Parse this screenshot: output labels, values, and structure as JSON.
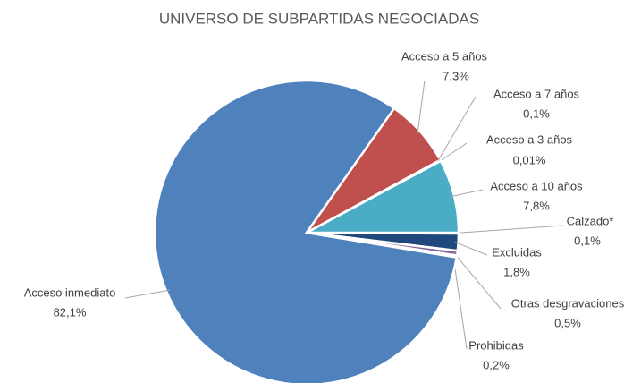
{
  "chart_data": {
    "type": "pie",
    "title": "UNIVERSO DE SUBPARTIDAS NEGOCIADAS",
    "categories": [
      "Calzado*",
      "Excluidas",
      "Otras desgravaciones",
      "Prohibidas",
      "Acceso inmediato",
      "Acceso a 5 años",
      "Acceso a 7 años",
      "Acceso a 3 años",
      "Acceso a 10 años"
    ],
    "values": [
      0.1,
      1.8,
      0.5,
      0.2,
      82.1,
      7.3,
      0.1,
      0.01,
      7.8
    ],
    "value_labels": [
      "0,1%",
      "1,8%",
      "0,5%",
      "0,2%",
      "82,1%",
      "7,3%",
      "0,1%",
      "0,01%",
      "7,8%"
    ],
    "colors": [
      "#9bbb59",
      "#1f497d",
      "#8064a2",
      "#c0504d",
      "#4f81bd",
      "#c0504d",
      "#8064a2",
      "#9bbb59",
      "#4bacc6"
    ]
  }
}
